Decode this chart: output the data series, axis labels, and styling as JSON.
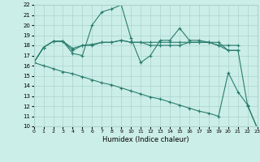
{
  "xlabel": "Humidex (Indice chaleur)",
  "xlim": [
    0,
    23
  ],
  "ylim": [
    10,
    22
  ],
  "yticks": [
    10,
    11,
    12,
    13,
    14,
    15,
    16,
    17,
    18,
    19,
    20,
    21,
    22
  ],
  "xticks": [
    0,
    1,
    2,
    3,
    4,
    5,
    6,
    7,
    8,
    9,
    10,
    11,
    12,
    13,
    14,
    15,
    16,
    17,
    18,
    19,
    20,
    21,
    22,
    23
  ],
  "line_color": "#2a7d6e",
  "bg_color": "#cceee8",
  "grid_color": "#aad4ce",
  "line1_x": [
    0,
    1,
    2,
    3,
    4,
    5,
    6,
    7,
    8,
    9,
    10,
    11,
    12,
    13,
    14,
    15,
    16,
    17,
    18,
    19,
    20,
    21,
    22,
    23
  ],
  "line1_y": [
    16.3,
    17.8,
    18.4,
    18.4,
    17.2,
    17.0,
    20.0,
    21.3,
    21.6,
    22.0,
    18.7,
    16.3,
    17.0,
    18.5,
    18.5,
    19.7,
    18.5,
    18.5,
    18.3,
    18.3,
    17.5,
    17.5,
    12.0,
    9.8
  ],
  "line2_x": [
    0,
    1,
    2,
    3,
    4,
    5,
    6,
    7,
    8,
    9,
    10,
    11,
    12,
    13,
    14,
    15,
    16,
    17,
    18,
    19,
    20,
    21
  ],
  "line2_y": [
    16.3,
    17.8,
    18.4,
    18.4,
    17.7,
    18.0,
    18.1,
    18.3,
    18.3,
    18.5,
    18.3,
    18.3,
    18.3,
    18.3,
    18.3,
    18.3,
    18.3,
    18.3,
    18.3,
    18.0,
    17.5,
    17.5
  ],
  "line3_x": [
    0,
    1,
    2,
    3,
    4,
    5,
    6,
    7,
    8,
    9,
    10,
    11,
    12,
    13,
    14,
    15,
    16,
    17,
    18,
    19,
    20,
    21
  ],
  "line3_y": [
    16.3,
    17.8,
    18.4,
    18.4,
    17.5,
    18.0,
    18.0,
    18.3,
    18.3,
    18.5,
    18.3,
    18.3,
    18.0,
    18.0,
    18.0,
    18.0,
    18.3,
    18.3,
    18.3,
    18.0,
    18.0,
    18.0
  ],
  "line4_x": [
    0,
    1,
    2,
    3,
    4,
    5,
    6,
    7,
    8,
    9,
    10,
    11,
    12,
    13,
    14,
    15,
    16,
    17,
    18,
    19,
    20,
    21,
    22,
    23
  ],
  "line4_y": [
    16.3,
    16.0,
    15.7,
    15.4,
    15.2,
    14.9,
    14.6,
    14.3,
    14.1,
    13.8,
    13.5,
    13.2,
    12.9,
    12.7,
    12.4,
    12.1,
    11.8,
    11.5,
    11.3,
    11.0,
    15.3,
    13.4,
    12.1,
    9.8
  ]
}
